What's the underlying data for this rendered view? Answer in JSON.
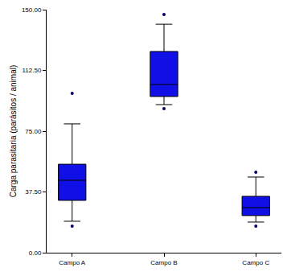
{
  "chart_data": {
    "type": "box",
    "y_label": "Carga parasitaria (parásitos / animal)",
    "categories": [
      "Campo A",
      "Campo B",
      "Campo C"
    ],
    "color": "#1010e6",
    "min": [
      16.4,
      88.9,
      16.4
    ],
    "whisker_low": [
      19.4,
      91.4,
      18.9
    ],
    "q1": [
      32.3,
      96.4,
      22.9
    ],
    "median": [
      44.7,
      103.8,
      27.8
    ],
    "q3": [
      54.6,
      124.2,
      34.8
    ],
    "whisker_high": [
      79.5,
      141,
      46.7
    ],
    "max": [
      98.4,
      147,
      49.7
    ],
    "ylim": [
      0,
      150
    ],
    "yticks": [
      {
        "value": 0,
        "label": "0.00"
      },
      {
        "value": 37.5,
        "label": "37.50"
      },
      {
        "value": 75,
        "label": "75.00"
      },
      {
        "value": 112.5,
        "label": "112.50"
      },
      {
        "value": 150,
        "label": "150.00"
      }
    ],
    "grid": false
  }
}
